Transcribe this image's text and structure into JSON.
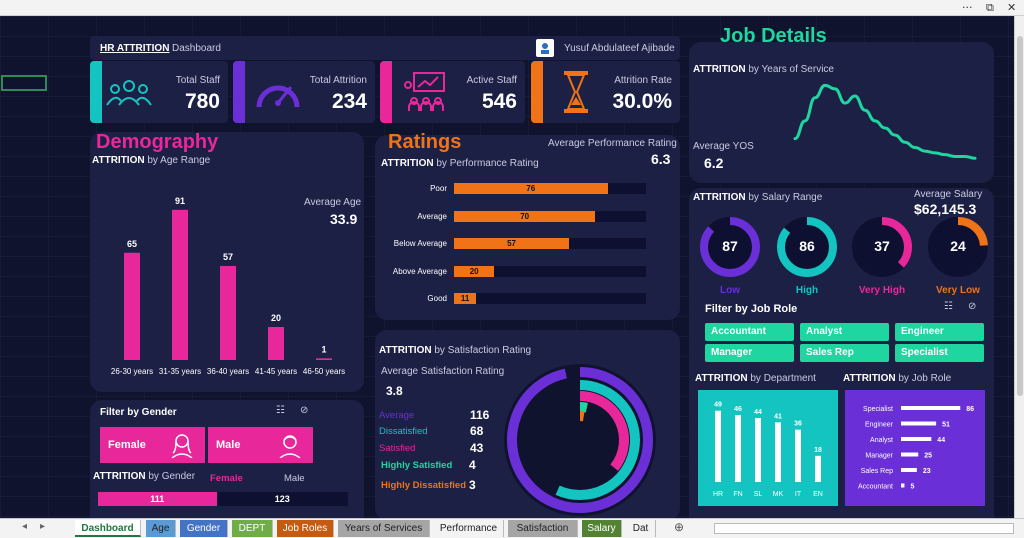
{
  "window": {
    "controls": [
      "···",
      "⧉",
      "✕"
    ]
  },
  "header": {
    "title": "HR ATTRITION",
    "subtitle": "Dashboard",
    "author": "Yusuf Abdulateef Ajibade"
  },
  "kpis": [
    {
      "label": "Total Staff",
      "value": "780",
      "color": "#14c4c0"
    },
    {
      "label": "Total Attrition",
      "value": "234",
      "color": "#6a2fd6"
    },
    {
      "label": "Active Staff",
      "value": "546",
      "color": "#e8289a"
    },
    {
      "label": "Attrition Rate",
      "value": "30.0%",
      "color": "#f07317"
    }
  ],
  "demography": {
    "title": "Demography",
    "chart_title_bold": "ATTRITION",
    "chart_title_rest": "by Age Range",
    "avg_label": "Average Age",
    "avg_value": "33.9"
  },
  "ratings": {
    "title": "Ratings",
    "chart_title_bold": "ATTRITION",
    "chart_title_rest": "by Performance Rating",
    "avg_label": "Average Performance Rating",
    "avg_value": "6.3"
  },
  "job_details": {
    "title": "Job Details"
  },
  "yos": {
    "chart_title_bold": "ATTRITION",
    "chart_title_rest": "by Years of Service",
    "avg_label": "Average YOS",
    "avg_value": "6.2"
  },
  "salary": {
    "chart_title_bold": "ATTRITION",
    "chart_title_rest": "by Salary Range",
    "avg_label": "Average Salary",
    "avg_value": "$62,145.3",
    "rings": [
      {
        "label": "Low",
        "value": "87",
        "color": "#6a2fd6"
      },
      {
        "label": "High",
        "value": "86",
        "color": "#14c4c0"
      },
      {
        "label": "Very High",
        "value": "37",
        "color": "#e8289a"
      },
      {
        "label": "Very Low",
        "value": "24",
        "color": "#f07317"
      }
    ]
  },
  "job_filter": {
    "title": "Filter by Job Role",
    "buttons": [
      "Accountant",
      "Analyst",
      "Engineer",
      "Manager",
      "Sales Rep",
      "Specialist"
    ]
  },
  "gender": {
    "title": "Filter by Gender",
    "female": "Female",
    "male": "Male",
    "chart_title_bold": "ATTRITION",
    "chart_title_rest": "by Gender",
    "legend_female": "Female",
    "legend_male": "Male",
    "female_value": "111",
    "male_value": "123"
  },
  "satisfaction": {
    "chart_title_bold": "ATTRITION",
    "chart_title_rest": "by Satisfaction Rating",
    "avg_label": "Average Satisfaction Rating",
    "avg_value": "3.8",
    "items": [
      {
        "label": "Average",
        "value": "116",
        "color": "#6a2fd6"
      },
      {
        "label": "Dissatisfied",
        "value": "68",
        "color": "#14c4c0"
      },
      {
        "label": "Satisfied",
        "value": "43",
        "color": "#e8289a"
      },
      {
        "label": "Highly Satisfied",
        "value": "4",
        "color": "#1fd6a0"
      },
      {
        "label": "Highly Dissatisfied",
        "value": "3",
        "color": "#f07317"
      }
    ]
  },
  "department": {
    "chart_title_bold": "ATTRITION",
    "chart_title_rest": "by Department"
  },
  "jobrole": {
    "chart_title_bold": "ATTRITION",
    "chart_title_rest": "by Job Role"
  },
  "tabs": [
    "Dashboard",
    "Age",
    "Gender",
    "DEPT",
    "Job Roles",
    "Years of Services",
    "Performance",
    "Satisfaction",
    "Salary",
    "Dat"
  ],
  "chart_data": [
    {
      "id": "age",
      "type": "bar",
      "categories": [
        "26-30 years",
        "31-35 years",
        "36-40 years",
        "41-45 years",
        "46-50 years"
      ],
      "values": [
        65,
        91,
        57,
        20,
        1
      ],
      "ylim": [
        0,
        100
      ],
      "color": "#e8289a"
    },
    {
      "id": "performance",
      "type": "bar",
      "orientation": "horizontal",
      "categories": [
        "Poor",
        "Average",
        "Below Average",
        "Above Average",
        "Good"
      ],
      "values": [
        76,
        70,
        57,
        20,
        11
      ],
      "xlim": [
        0,
        100
      ],
      "color": "#f07317"
    },
    {
      "id": "yos",
      "type": "line",
      "x": [
        0,
        1,
        2,
        3,
        4,
        5,
        6,
        7,
        8,
        9,
        10,
        11,
        12,
        13,
        14,
        15,
        16,
        17,
        18
      ],
      "y": [
        12,
        22,
        35,
        42,
        40,
        32,
        36,
        28,
        22,
        18,
        14,
        10,
        7,
        5,
        4,
        3,
        2,
        2,
        1
      ],
      "ylim": [
        0,
        45
      ],
      "color": "#1fd6a0"
    },
    {
      "id": "department",
      "type": "bar",
      "categories": [
        "HR",
        "FN",
        "SL",
        "MK",
        "IT",
        "EN"
      ],
      "values": [
        49,
        46,
        44,
        41,
        36,
        18
      ],
      "ylim": [
        0,
        55
      ],
      "color": "#ffffff"
    },
    {
      "id": "jobrole",
      "type": "bar",
      "orientation": "horizontal",
      "categories": [
        "Specialist",
        "Engineer",
        "Analyst",
        "Manager",
        "Sales Rep",
        "Accountant"
      ],
      "values": [
        86,
        51,
        44,
        25,
        23,
        5
      ],
      "xlim": [
        0,
        90
      ],
      "color": "#ffffff"
    },
    {
      "id": "satisfaction",
      "type": "pie",
      "categories": [
        "Average",
        "Dissatisfied",
        "Satisfied",
        "Highly Satisfied",
        "Highly Dissatisfied"
      ],
      "values": [
        116,
        68,
        43,
        4,
        3
      ]
    },
    {
      "id": "gender",
      "type": "bar",
      "orientation": "horizontal",
      "categories": [
        "Female",
        "Male"
      ],
      "values": [
        111,
        123
      ]
    }
  ]
}
